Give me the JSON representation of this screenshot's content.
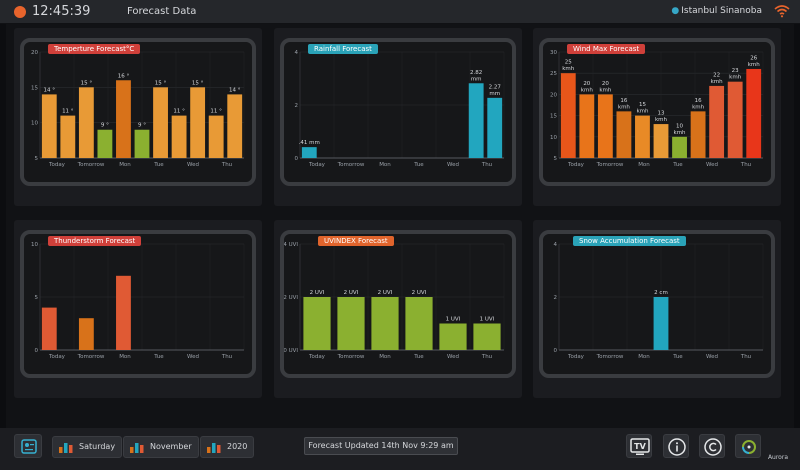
{
  "topbar": {
    "time": "12:45:39",
    "title": "Forecast Data",
    "location": "Istanbul Sinanoba"
  },
  "charts": [
    {
      "id": "temperature",
      "title": "Temperture Forecast°C",
      "title_color": "#d0403a",
      "ymin": 5,
      "ymax": 20,
      "yticks": [
        5,
        10,
        15,
        20
      ],
      "xlabels": [
        "Today",
        "Tomorrow",
        "Mon",
        "Tue",
        "Wed",
        "Thu"
      ],
      "bars": [
        {
          "v": 14,
          "label": "14 °",
          "color": "#e89a36"
        },
        {
          "v": 11,
          "label": "11 °",
          "color": "#e89a36"
        },
        {
          "v": 15,
          "label": "15 °",
          "color": "#e89a36"
        },
        {
          "v": 9,
          "label": "9 °",
          "color": "#8bb030"
        },
        {
          "v": 16,
          "label": "16 °",
          "color": "#d8721a"
        },
        {
          "v": 9,
          "label": "9 °",
          "color": "#8bb030"
        },
        {
          "v": 15,
          "label": "15 °",
          "color": "#e89a36"
        },
        {
          "v": 11,
          "label": "11 °",
          "color": "#e89a36"
        },
        {
          "v": 15,
          "label": "15 °",
          "color": "#e89a36"
        },
        {
          "v": 11,
          "label": "11 °",
          "color": "#e89a36"
        },
        {
          "v": 14,
          "label": "14 °",
          "color": "#e89a36"
        }
      ]
    },
    {
      "id": "rainfall",
      "title": "Rainfall Forecast",
      "title_color": "#2aa3b8",
      "ymin": 0,
      "ymax": 4,
      "yticks": [
        0,
        2,
        4
      ],
      "xlabels": [
        "Today",
        "Tomorrow",
        "Mon",
        "Tue",
        "Wed",
        "Thu"
      ],
      "bars": [
        {
          "v": 0.41,
          "label": ".41 mm",
          "color": "#22a6bf"
        },
        {
          "v": 0,
          "label": "",
          "color": "#22a6bf"
        },
        {
          "v": 0,
          "label": "",
          "color": "#22a6bf"
        },
        {
          "v": 0,
          "label": "",
          "color": "#22a6bf"
        },
        {
          "v": 0,
          "label": "",
          "color": "#22a6bf"
        },
        {
          "v": 0,
          "label": "",
          "color": "#22a6bf"
        },
        {
          "v": 0,
          "label": "",
          "color": "#22a6bf"
        },
        {
          "v": 0,
          "label": "",
          "color": "#22a6bf"
        },
        {
          "v": 0,
          "label": "",
          "color": "#22a6bf"
        },
        {
          "v": 2.82,
          "label": "2.82\nmm",
          "color": "#22a6bf"
        },
        {
          "v": 2.27,
          "label": "2.27\nmm",
          "color": "#22a6bf"
        }
      ]
    },
    {
      "id": "wind",
      "title": "Wind Max Forecast",
      "title_color": "#d0403a",
      "ymin": 5,
      "ymax": 30,
      "yticks": [
        5,
        10,
        15,
        20,
        25,
        30
      ],
      "xlabels": [
        "Today",
        "Tomorrow",
        "Mon",
        "Tue",
        "Wed",
        "Thu"
      ],
      "bars": [
        {
          "v": 25,
          "label": "25\nkmh",
          "color": "#e8561a"
        },
        {
          "v": 20,
          "label": "20\nkmh",
          "color": "#e8741a"
        },
        {
          "v": 20,
          "label": "20\nkmh",
          "color": "#e8741a"
        },
        {
          "v": 16,
          "label": "16\nkmh",
          "color": "#d8721a"
        },
        {
          "v": 15,
          "label": "15\nkmh",
          "color": "#e88a26"
        },
        {
          "v": 13,
          "label": "13\nkmh",
          "color": "#e89a36"
        },
        {
          "v": 10,
          "label": "10\nkmh",
          "color": "#8bb030"
        },
        {
          "v": 16,
          "label": "16\nkmh",
          "color": "#d8721a"
        },
        {
          "v": 22,
          "label": "22\nkmh",
          "color": "#e05a34"
        },
        {
          "v": 23,
          "label": "23\nkmh",
          "color": "#e05a34"
        },
        {
          "v": 26,
          "label": "26\nkmh",
          "color": "#e8361a"
        }
      ]
    },
    {
      "id": "thunderstorm",
      "title": "Thunderstorm Forecast",
      "title_color": "#d0403a",
      "ymin": 0,
      "ymax": 10,
      "yticks": [
        0,
        5,
        10
      ],
      "xlabels": [
        "Today",
        "Tomorrow",
        "Mon",
        "Tue",
        "Wed",
        "Thu"
      ],
      "bars": [
        {
          "v": 4,
          "label": "",
          "color": "#e05a34"
        },
        {
          "v": 0,
          "label": "",
          "color": "#e05a34"
        },
        {
          "v": 3,
          "label": "",
          "color": "#d8721a"
        },
        {
          "v": 0,
          "label": "",
          "color": "#e05a34"
        },
        {
          "v": 7,
          "label": "",
          "color": "#e05a34"
        },
        {
          "v": 0,
          "label": "",
          "color": "#e05a34"
        },
        {
          "v": 0,
          "label": "",
          "color": "#e05a34"
        },
        {
          "v": 0,
          "label": "",
          "color": "#e05a34"
        },
        {
          "v": 0,
          "label": "",
          "color": "#e05a34"
        },
        {
          "v": 0,
          "label": "",
          "color": "#e05a34"
        },
        {
          "v": 0,
          "label": "",
          "color": "#e05a34"
        }
      ]
    },
    {
      "id": "uvindex",
      "title": "UVINDEX Forecast",
      "title_color": "#e0642c",
      "ymin": 0,
      "ymax": 4,
      "yticks": [
        0,
        2,
        4
      ],
      "ytick_suffix": " UVI",
      "xlabels": [
        "Today",
        "Tomorrow",
        "Mon",
        "Tue",
        "Wed",
        "Thu"
      ],
      "bars": [
        {
          "v": 2,
          "label": "2 UVI",
          "color": "#8bb030"
        },
        {
          "v": 2,
          "label": "2 UVI",
          "color": "#8bb030"
        },
        {
          "v": 2,
          "label": "2 UVI",
          "color": "#8bb030"
        },
        {
          "v": 2,
          "label": "2 UVI",
          "color": "#8bb030"
        },
        {
          "v": 1,
          "label": "1 UVI",
          "color": "#8bb030"
        },
        {
          "v": 1,
          "label": "1 UVI",
          "color": "#8bb030"
        }
      ]
    },
    {
      "id": "snow",
      "title": "Snow Accumulation Forecast",
      "title_color": "#2aa3b8",
      "ymin": 0,
      "ymax": 4,
      "yticks": [
        0,
        2,
        4
      ],
      "xlabels": [
        "Today",
        "Tomorrow",
        "Mon",
        "Tue",
        "Wed",
        "Thu"
      ],
      "bars": [
        {
          "v": 0,
          "label": "",
          "color": "#22a6bf"
        },
        {
          "v": 0,
          "label": "",
          "color": "#22a6bf"
        },
        {
          "v": 0,
          "label": "",
          "color": "#22a6bf"
        },
        {
          "v": 0,
          "label": "",
          "color": "#22a6bf"
        },
        {
          "v": 0,
          "label": "",
          "color": "#22a6bf"
        },
        {
          "v": 2,
          "label": "2 cm",
          "color": "#22a6bf"
        },
        {
          "v": 0,
          "label": "",
          "color": "#22a6bf"
        },
        {
          "v": 0,
          "label": "",
          "color": "#22a6bf"
        },
        {
          "v": 0,
          "label": "",
          "color": "#22a6bf"
        },
        {
          "v": 0,
          "label": "",
          "color": "#22a6bf"
        },
        {
          "v": 0,
          "label": "",
          "color": "#22a6bf"
        }
      ]
    }
  ],
  "bottombar": {
    "day": "Saturday",
    "month": "November",
    "year": "2020",
    "status": "Forecast Updated 14th Nov 9:29 am",
    "tv_label": "TV",
    "brand": "Aurora"
  }
}
